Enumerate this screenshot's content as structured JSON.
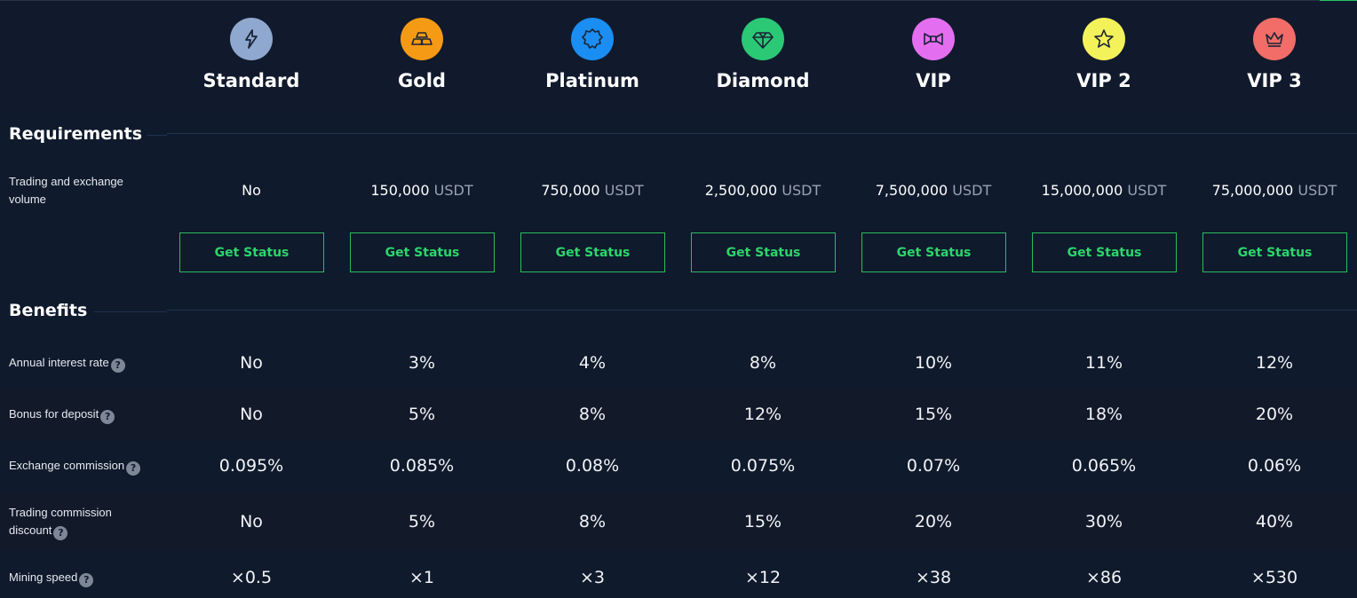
{
  "tiers": [
    {
      "name": "Standard",
      "icon": "lightning-icon",
      "color": "#8fa8d0"
    },
    {
      "name": "Gold",
      "icon": "gold-bars-icon",
      "color": "#f59a14"
    },
    {
      "name": "Platinum",
      "icon": "badge-icon",
      "color": "#1a8ef2"
    },
    {
      "name": "Diamond",
      "icon": "diamond-icon",
      "color": "#2bc876"
    },
    {
      "name": "VIP",
      "icon": "bowtie-icon",
      "color": "#e46ef0"
    },
    {
      "name": "VIP 2",
      "icon": "star-icon",
      "color": "#f4f25a"
    },
    {
      "name": "VIP 3",
      "icon": "crown-icon",
      "color": "#f26c68"
    }
  ],
  "requirements": {
    "title": "Requirements",
    "volume_label": "Trading and exchange volume",
    "unit": "USDT",
    "volumes": [
      "No",
      "150,000",
      "750,000",
      "2,500,000",
      "7,500,000",
      "15,000,000",
      "75,000,000"
    ],
    "button_label": "Get Status"
  },
  "benefits": {
    "title": "Benefits",
    "rows": [
      {
        "label": "Annual interest rate",
        "values": [
          "No",
          "3%",
          "4%",
          "8%",
          "10%",
          "11%",
          "12%"
        ]
      },
      {
        "label": "Bonus for deposit",
        "values": [
          "No",
          "5%",
          "8%",
          "12%",
          "15%",
          "18%",
          "20%"
        ]
      },
      {
        "label": "Exchange commission",
        "values": [
          "0.095%",
          "0.085%",
          "0.08%",
          "0.075%",
          "0.07%",
          "0.065%",
          "0.06%"
        ]
      },
      {
        "label": "Trading commission discount",
        "values": [
          "No",
          "5%",
          "8%",
          "15%",
          "20%",
          "30%",
          "40%"
        ]
      },
      {
        "label": "Mining speed",
        "values": [
          "×0.5",
          "×1",
          "×3",
          "×12",
          "×38",
          "×86",
          "×530"
        ]
      }
    ]
  },
  "help_symbol": "?",
  "colors": {
    "accent": "#2bd66b",
    "background": "#0f1a2c",
    "alt_row": "#121a2a"
  }
}
